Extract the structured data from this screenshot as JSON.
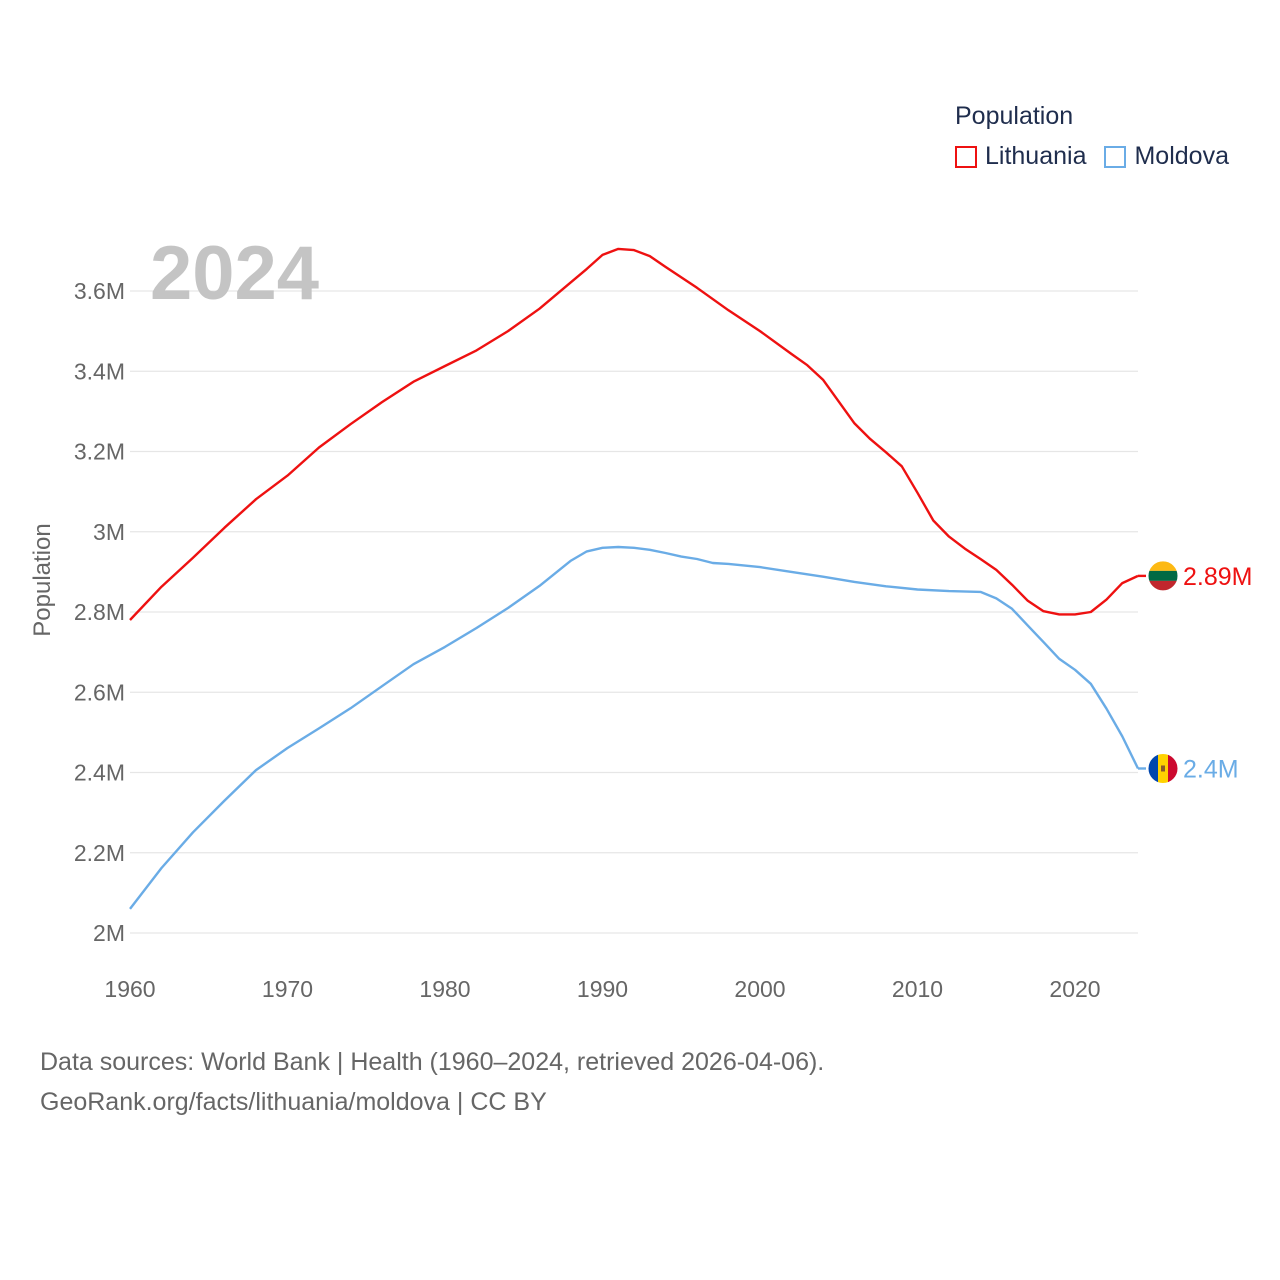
{
  "chart_data": {
    "type": "line",
    "title": "Population",
    "year_display": "2024",
    "ylabel": "Population",
    "xlabel": "",
    "xlim": [
      1960,
      2024
    ],
    "ylim": [
      2000000,
      3700000
    ],
    "x_ticks": [
      1960,
      1970,
      1980,
      1990,
      2000,
      2010,
      2020
    ],
    "x_tick_labels": [
      "1960",
      "1970",
      "1980",
      "1990",
      "2000",
      "2010",
      "2020"
    ],
    "y_ticks": [
      2000000,
      2200000,
      2400000,
      2600000,
      2800000,
      3000000,
      3200000,
      3400000,
      3600000
    ],
    "y_tick_labels": [
      "2M",
      "2.2M",
      "2.4M",
      "2.6M",
      "2.8M",
      "3M",
      "3.2M",
      "3.4M",
      "3.6M"
    ],
    "grid": true,
    "legend_position": "top-right",
    "series": [
      {
        "name": "Lithuania",
        "color": "#ee1111",
        "end_label": "2.89M",
        "flag_icon": "lithuania-flag-icon",
        "x": [
          1960,
          1962,
          1964,
          1966,
          1968,
          1970,
          1972,
          1974,
          1976,
          1978,
          1980,
          1982,
          1984,
          1986,
          1988,
          1989,
          1990,
          1991,
          1992,
          1993,
          1994,
          1996,
          1998,
          2000,
          2002,
          2003,
          2004,
          2006,
          2007,
          2008,
          2009,
          2010,
          2011,
          2012,
          2013,
          2014,
          2015,
          2016,
          2017,
          2018,
          2019,
          2020,
          2021,
          2022,
          2023,
          2024
        ],
        "values": [
          2780000,
          2863000,
          2935000,
          3010000,
          3081000,
          3140000,
          3210000,
          3268000,
          3323000,
          3374000,
          3413000,
          3452000,
          3500000,
          3556000,
          3622000,
          3655000,
          3690000,
          3705000,
          3702000,
          3687000,
          3660000,
          3608000,
          3552000,
          3500000,
          3443000,
          3415000,
          3379000,
          3270000,
          3231000,
          3198000,
          3163000,
          3097000,
          3028000,
          2988000,
          2958000,
          2932000,
          2905000,
          2868000,
          2828000,
          2802000,
          2794000,
          2794000,
          2800000,
          2831000,
          2872000,
          2890000
        ]
      },
      {
        "name": "Moldova",
        "color": "#6aace6",
        "end_label": "2.4M",
        "flag_icon": "moldova-flag-icon",
        "x": [
          1960,
          1962,
          1964,
          1966,
          1968,
          1970,
          1972,
          1974,
          1976,
          1978,
          1980,
          1982,
          1984,
          1986,
          1988,
          1989,
          1990,
          1991,
          1992,
          1993,
          1994,
          1995,
          1996,
          1997,
          1998,
          2000,
          2002,
          2004,
          2006,
          2008,
          2010,
          2012,
          2014,
          2015,
          2016,
          2017,
          2018,
          2019,
          2020,
          2021,
          2022,
          2023,
          2024
        ],
        "values": [
          2060000,
          2162000,
          2251000,
          2330000,
          2406000,
          2461000,
          2510000,
          2560000,
          2615000,
          2670000,
          2713000,
          2760000,
          2810000,
          2865000,
          2928000,
          2951000,
          2960000,
          2962000,
          2960000,
          2955000,
          2947000,
          2938000,
          2932000,
          2922000,
          2920000,
          2912000,
          2900000,
          2888000,
          2875000,
          2864000,
          2856000,
          2852000,
          2850000,
          2834000,
          2808000,
          2766000,
          2725000,
          2683000,
          2656000,
          2621000,
          2559000,
          2490000,
          2410000
        ]
      }
    ]
  },
  "legend": {
    "title": "Population",
    "items": [
      {
        "label": "Lithuania",
        "color": "#ee1111"
      },
      {
        "label": "Moldova",
        "color": "#6aace6"
      }
    ]
  },
  "footer": {
    "line1": "Data sources: World Bank | Health (1960–2024, retrieved 2026-04-06).",
    "line2": "GeoRank.org/facts/lithuania/moldova | CC BY"
  }
}
